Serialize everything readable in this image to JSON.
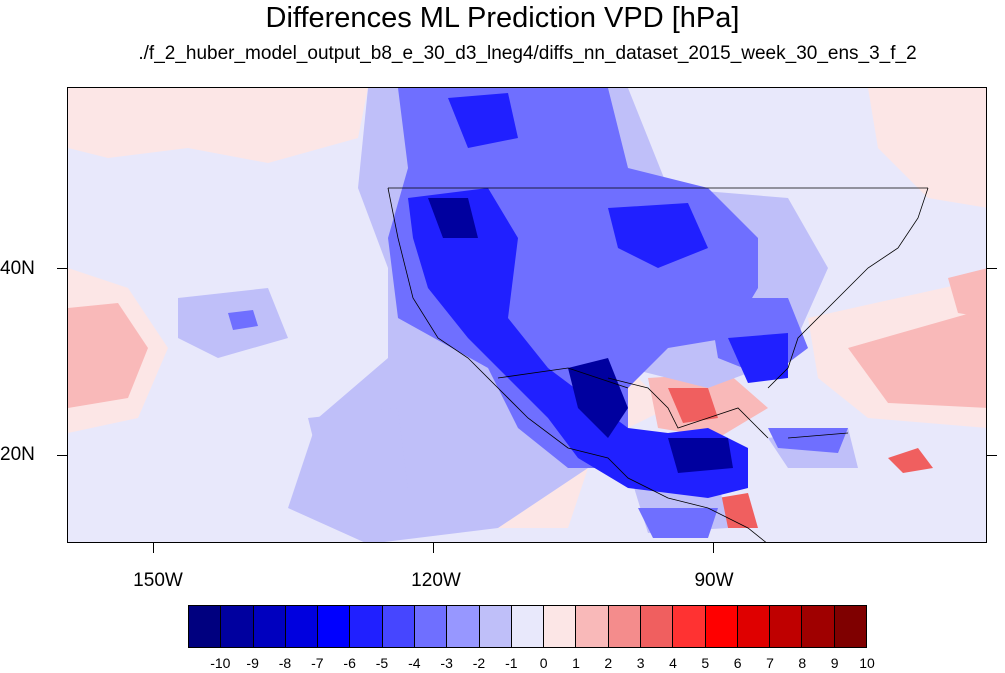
{
  "title": "Differences ML Prediction VPD [hPa]",
  "subtitle": "./f_2_huber_model_output_b8_e_30_d3_lneg4/diffs_nn_dataset_2015_week_30_ens_3_f_2",
  "longitude_labels": [
    "150W",
    "120W",
    "90W"
  ],
  "latitude_labels": [
    "40N",
    "20N"
  ],
  "colorbar": {
    "labels": [
      "-10",
      "-9",
      "-8",
      "-7",
      "-6",
      "-5",
      "-4",
      "-3",
      "-2",
      "-1",
      "0",
      "1",
      "2",
      "3",
      "4",
      "5",
      "6",
      "7",
      "8",
      "9",
      "10"
    ],
    "colors": [
      "#00007f",
      "#00009f",
      "#0000bf",
      "#0000df",
      "#0000ff",
      "#2020ff",
      "#4646ff",
      "#6f6fff",
      "#9797ff",
      "#bfbff9",
      "#e8e8fb",
      "#fce6e6",
      "#f9b9b9",
      "#f48c8c",
      "#f05f5f",
      "#ff3232",
      "#ff0000",
      "#df0000",
      "#bf0000",
      "#9f0000",
      "#7f0000"
    ]
  },
  "map": {
    "region": "North America and eastern Pacific",
    "background_color": "#e8e8fb"
  }
}
